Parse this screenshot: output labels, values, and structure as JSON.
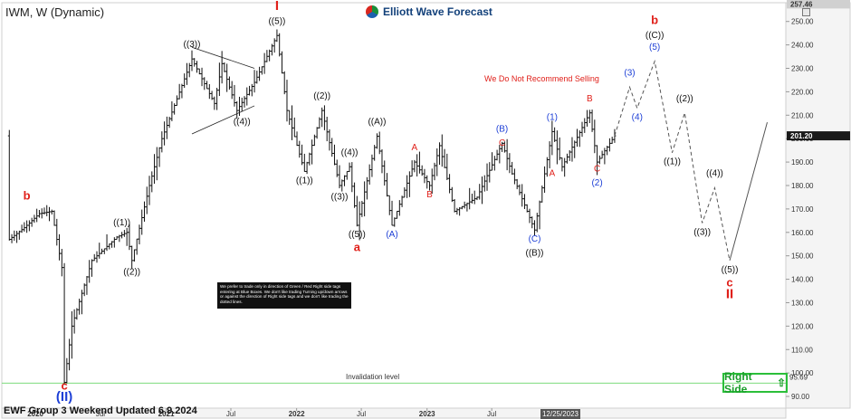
{
  "ticker": "IWM, W (Dynamic)",
  "brand": "Elliott Wave Forecast",
  "footer": "EWF Group 3 Weekend Updated 6.9.2024",
  "notice": "We prefer to trade only in direction of Green / Red Right side tags entering at Blue Boxes. We don't like trading Turning up/down arrows or against the direction of Right side tags and we don't like trading the dotted lines.",
  "right_side": "Right Side",
  "recommend": "We Do Not Recommend Selling",
  "invalidation_label": "Invalidation level",
  "date_flag": "12/25/2023",
  "chart_data": {
    "type": "candlestick",
    "x_ticks": [
      "2020",
      "Jul",
      "2021",
      "Jul",
      "2022",
      "Jul",
      "2023",
      "Jul"
    ],
    "y_ticks": [
      90,
      100,
      110,
      120,
      130,
      140,
      150,
      160,
      170,
      180,
      190,
      200,
      210,
      220,
      230,
      240,
      250
    ],
    "ylim": [
      85,
      258
    ],
    "price_labels": {
      "top": "257.46",
      "current": "201.20",
      "invalidation": "95.69"
    },
    "current_price": 201.2,
    "invalidation_level": 95.69,
    "price_path": [
      [
        "2019-10-20",
        157
      ],
      [
        "2019-12-01",
        162
      ],
      [
        "2020-01-12",
        168
      ],
      [
        "2020-02-16",
        169
      ],
      [
        "2020-03-15",
        145
      ],
      [
        "2020-03-22",
        96
      ],
      [
        "2020-04-12",
        120
      ],
      [
        "2020-06-07",
        148
      ],
      [
        "2020-07-12",
        153
      ],
      [
        "2020-08-16",
        158
      ],
      [
        "2020-09-13",
        160
      ],
      [
        "2020-09-27",
        148
      ],
      [
        "2020-11-15",
        180
      ],
      [
        "2020-12-20",
        200
      ],
      [
        "2021-03-14",
        234
      ],
      [
        "2021-05-16",
        215
      ],
      [
        "2021-06-06",
        232
      ],
      [
        "2021-07-18",
        212
      ],
      [
        "2021-09-05",
        224
      ],
      [
        "2021-11-07",
        244
      ],
      [
        "2021-12-05",
        212
      ],
      [
        "2022-01-23",
        186
      ],
      [
        "2022-03-13",
        212
      ],
      [
        "2022-05-01",
        180
      ],
      [
        "2022-05-29",
        188
      ],
      [
        "2022-06-19",
        163
      ],
      [
        "2022-08-14",
        201
      ],
      [
        "2022-09-25",
        163
      ],
      [
        "2022-11-27",
        190
      ],
      [
        "2023-01-08",
        180
      ],
      [
        "2023-02-05",
        197
      ],
      [
        "2023-03-19",
        169
      ],
      [
        "2023-05-21",
        175
      ],
      [
        "2023-07-30",
        198
      ],
      [
        "2023-08-27",
        185
      ],
      [
        "2023-10-29",
        161
      ],
      [
        "2023-12-17",
        203
      ],
      [
        "2024-01-14",
        188
      ],
      [
        "2024-03-31",
        211
      ],
      [
        "2024-04-21",
        190
      ],
      [
        "2024-06-09",
        201.2
      ]
    ],
    "projection": [
      [
        "2024-06-09",
        201.2
      ],
      [
        "2024-07-21",
        222
      ],
      [
        "2024-08-11",
        213
      ],
      [
        "2024-09-29",
        233
      ],
      [
        "2024-11-17",
        194
      ],
      [
        "2024-12-22",
        211
      ],
      [
        "2025-02-09",
        164
      ],
      [
        "2025-03-16",
        179
      ],
      [
        "2025-04-27",
        148
      ],
      [
        "2025-08-10",
        207
      ]
    ],
    "wave_labels": [
      {
        "text": "b",
        "date": "2019-12-08",
        "price": 174,
        "color": "#e0201a"
      },
      {
        "text": "c",
        "date": "2020-03-22",
        "price": 93,
        "color": "#e0201a"
      },
      {
        "text": "(II)",
        "date": "2020-03-22",
        "price": 88,
        "color": "#1d3fd6"
      },
      {
        "text": "((1))",
        "date": "2020-08-30",
        "price": 163,
        "color": "#111111"
      },
      {
        "text": "((2))",
        "date": "2020-09-27",
        "price": 142,
        "color": "#111111"
      },
      {
        "text": "((3))",
        "date": "2021-03-14",
        "price": 239,
        "color": "#111111"
      },
      {
        "text": "((4))",
        "date": "2021-08-01",
        "price": 206,
        "color": "#111111"
      },
      {
        "text": "((5))",
        "date": "2021-11-07",
        "price": 249,
        "color": "#111111"
      },
      {
        "text": "I",
        "date": "2021-11-07",
        "price": 255,
        "color": "#e0201a"
      },
      {
        "text": "((1))",
        "date": "2022-01-23",
        "price": 181,
        "color": "#111111"
      },
      {
        "text": "((2))",
        "date": "2022-03-13",
        "price": 217,
        "color": "#111111"
      },
      {
        "text": "((3))",
        "date": "2022-05-01",
        "price": 174,
        "color": "#111111"
      },
      {
        "text": "((4))",
        "date": "2022-05-29",
        "price": 193,
        "color": "#111111"
      },
      {
        "text": "((5))",
        "date": "2022-06-19",
        "price": 158,
        "color": "#111111"
      },
      {
        "text": "a",
        "date": "2022-06-19",
        "price": 152,
        "color": "#e0201a"
      },
      {
        "text": "((A))",
        "date": "2022-08-14",
        "price": 206,
        "color": "#111111"
      },
      {
        "text": "(A)",
        "date": "2022-09-25",
        "price": 158,
        "color": "#1d3fd6"
      },
      {
        "text": "A",
        "date": "2022-11-27",
        "price": 195,
        "color": "#e0201a"
      },
      {
        "text": "B",
        "date": "2023-01-08",
        "price": 175,
        "color": "#e0201a"
      },
      {
        "text": "(B)",
        "date": "2023-07-30",
        "price": 203,
        "color": "#1d3fd6"
      },
      {
        "text": "C",
        "date": "2023-07-30",
        "price": 197,
        "color": "#e0201a"
      },
      {
        "text": "(C)",
        "date": "2023-10-29",
        "price": 156,
        "color": "#1d3fd6"
      },
      {
        "text": "((B))",
        "date": "2023-10-29",
        "price": 150,
        "color": "#111111"
      },
      {
        "text": "(1)",
        "date": "2023-12-17",
        "price": 208,
        "color": "#1d3fd6"
      },
      {
        "text": "A",
        "date": "2023-12-17",
        "price": 184,
        "color": "#e0201a"
      },
      {
        "text": "B",
        "date": "2024-03-31",
        "price": 216,
        "color": "#e0201a"
      },
      {
        "text": "C",
        "date": "2024-04-21",
        "price": 186,
        "color": "#e0201a"
      },
      {
        "text": "(2)",
        "date": "2024-04-21",
        "price": 180,
        "color": "#1d3fd6"
      },
      {
        "text": "(3)",
        "date": "2024-07-21",
        "price": 227,
        "color": "#1d3fd6"
      },
      {
        "text": "(4)",
        "date": "2024-08-11",
        "price": 208,
        "color": "#1d3fd6"
      },
      {
        "text": "(5)",
        "date": "2024-09-29",
        "price": 238,
        "color": "#1d3fd6"
      },
      {
        "text": "((C))",
        "date": "2024-09-29",
        "price": 243,
        "color": "#111111"
      },
      {
        "text": "b",
        "date": "2024-09-29",
        "price": 249,
        "color": "#e0201a"
      },
      {
        "text": "((1))",
        "date": "2024-11-17",
        "price": 189,
        "color": "#111111"
      },
      {
        "text": "((2))",
        "date": "2024-12-22",
        "price": 216,
        "color": "#111111"
      },
      {
        "text": "((3))",
        "date": "2025-02-09",
        "price": 159,
        "color": "#111111"
      },
      {
        "text": "((4))",
        "date": "2025-03-16",
        "price": 184,
        "color": "#111111"
      },
      {
        "text": "((5))",
        "date": "2025-04-27",
        "price": 143,
        "color": "#111111"
      },
      {
        "text": "c",
        "date": "2025-04-27",
        "price": 137,
        "color": "#e0201a"
      },
      {
        "text": "II",
        "date": "2025-04-27",
        "price": 132,
        "color": "#e0201a"
      }
    ],
    "triangle": {
      "upper": [
        [
          "2021-03-14",
          239
        ],
        [
          "2021-09-05",
          230
        ]
      ],
      "lower": [
        [
          "2021-03-14",
          202
        ],
        [
          "2021-09-05",
          214
        ]
      ]
    },
    "colors": {
      "up_bar": "#111111",
      "projection": "#555555",
      "invalidation": "#7ddb7d",
      "wave_red": "#e0201a",
      "wave_blue": "#1d3fd6"
    }
  }
}
